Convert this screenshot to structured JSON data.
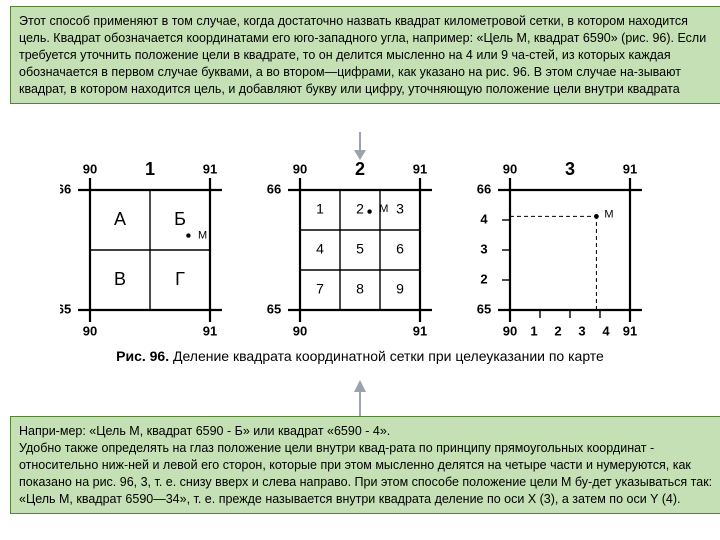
{
  "box1": "Этот способ применяют в том случае, когда достаточно назвать квадрат километровой сетки, в котором находится цель. Квадрат обозначается координатами его юго-западного угла, например: «Цель М, квадрат 6590» (рис. 96). Если требуется уточнить положение цели в квадрате, то он делится мысленно на 4 или 9 ча-стей, из которых каждая обозначается в первом случае буквами, а во втором—цифрами, как указано на рис. 96. В этом случае на-зывают квадрат, в котором находится цель, и добавляют букву или цифру, уточняющую положение цели внутри квадрата",
  "caption_bold": "Рис. 96.",
  "caption_rest": " Деление квадрата координатной сетки при целеуказании по карте",
  "box2": "Напри-мер: «Цель М, квадрат 6590 - Б» или квадрат «6590 - 4».\nУдобно также определять на глаз положение цели внутри квад-рата по принципу прямоугольных координат - относительно ниж-ней и левой его сторон, которые при этом мысленно делятся на четыре части и нумеруются, как показано на рис. 96, 3, т. е. снизу вверх и слева направо. При этом способе положение цели М бу-дет указываться так: «Цель М, квадрат 6590—34», т. е. прежде называется внутри квадрата деление по оси X (3), а затем по оси Y (4).",
  "fig": {
    "panels": [
      "1",
      "2",
      "3"
    ],
    "outer_ticks_x": [
      "90",
      "91"
    ],
    "outer_ticks_y": [
      "66",
      "65"
    ],
    "p1_cells": [
      [
        "А",
        "Б"
      ],
      [
        "В",
        "Г"
      ]
    ],
    "p2_cells": [
      [
        "1",
        "2",
        "3"
      ],
      [
        "4",
        "5",
        "6"
      ],
      [
        "7",
        "8",
        "9"
      ]
    ],
    "target_label": "М",
    "p3_y": [
      "66",
      "4",
      "3",
      "2",
      "65"
    ],
    "p3_x": [
      "90",
      "1",
      "2",
      "3",
      "4",
      "91"
    ],
    "stroke": "#000000",
    "line_w_outer": 2.2,
    "line_w_inner": 1.4,
    "fontsize_big": 18,
    "fontsize_num": 14,
    "fontsize_tick": 13
  },
  "arrow_color": "#9ca3af"
}
